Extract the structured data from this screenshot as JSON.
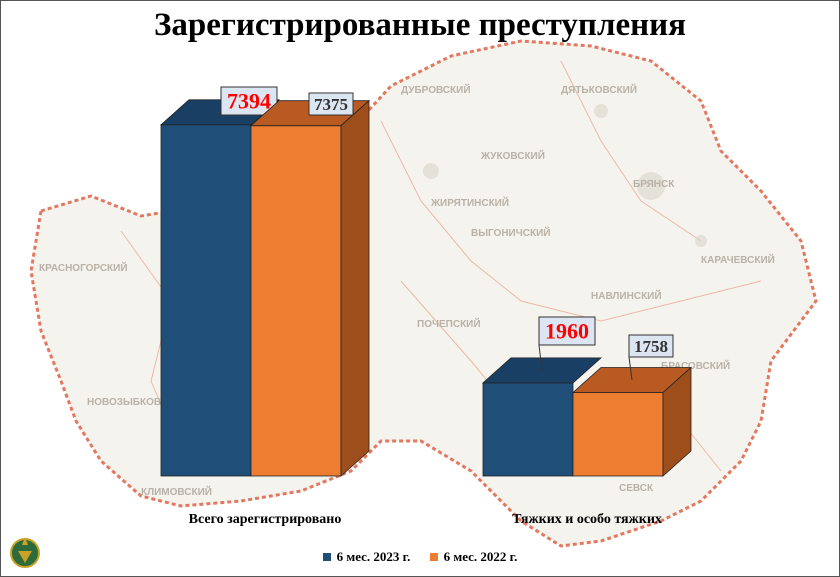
{
  "title": "Зарегистрированные преступления",
  "chart_data": {
    "type": "bar",
    "categories": [
      "Всего зарегистрировано",
      "Тяжких и особо тяжких"
    ],
    "series": [
      {
        "name": "6 мес. 2023 г.",
        "values": [
          7394,
          1960
        ],
        "color": "#1f4e79"
      },
      {
        "name": "6 мес. 2022 г.",
        "values": [
          7375,
          1758
        ],
        "color": "#ed7d31"
      }
    ],
    "value_labels": [
      [
        "7394",
        "1960"
      ],
      [
        "7375",
        "1758"
      ]
    ],
    "ylim": [
      0,
      8000
    ],
    "grid": false,
    "legend_position": "bottom",
    "style": "3d-columns"
  },
  "map_labels": [
    "ДУБРОВСКИЙ",
    "ДЯТЬКОВСКИЙ",
    "ЖУКОВСКИЙ",
    "БРЯНСК",
    "ЖИРЯТИНСКИЙ",
    "ВЫГОНИЧСКИЙ",
    "КАРАЧЕВСКИЙ",
    "КРАСНОГОРСКИЙ",
    "НАВЛИНСКИЙ",
    "ПОЧЕПСКИЙ",
    "НОВОЗЫБКОВ",
    "КЛИМОВСКИЙ",
    "БРАСОВСКИЙ",
    "СЕВСК"
  ],
  "colors": {
    "map_fill": "#f7f5f0",
    "map_border": "#d9533a",
    "background": "#ffffff"
  }
}
